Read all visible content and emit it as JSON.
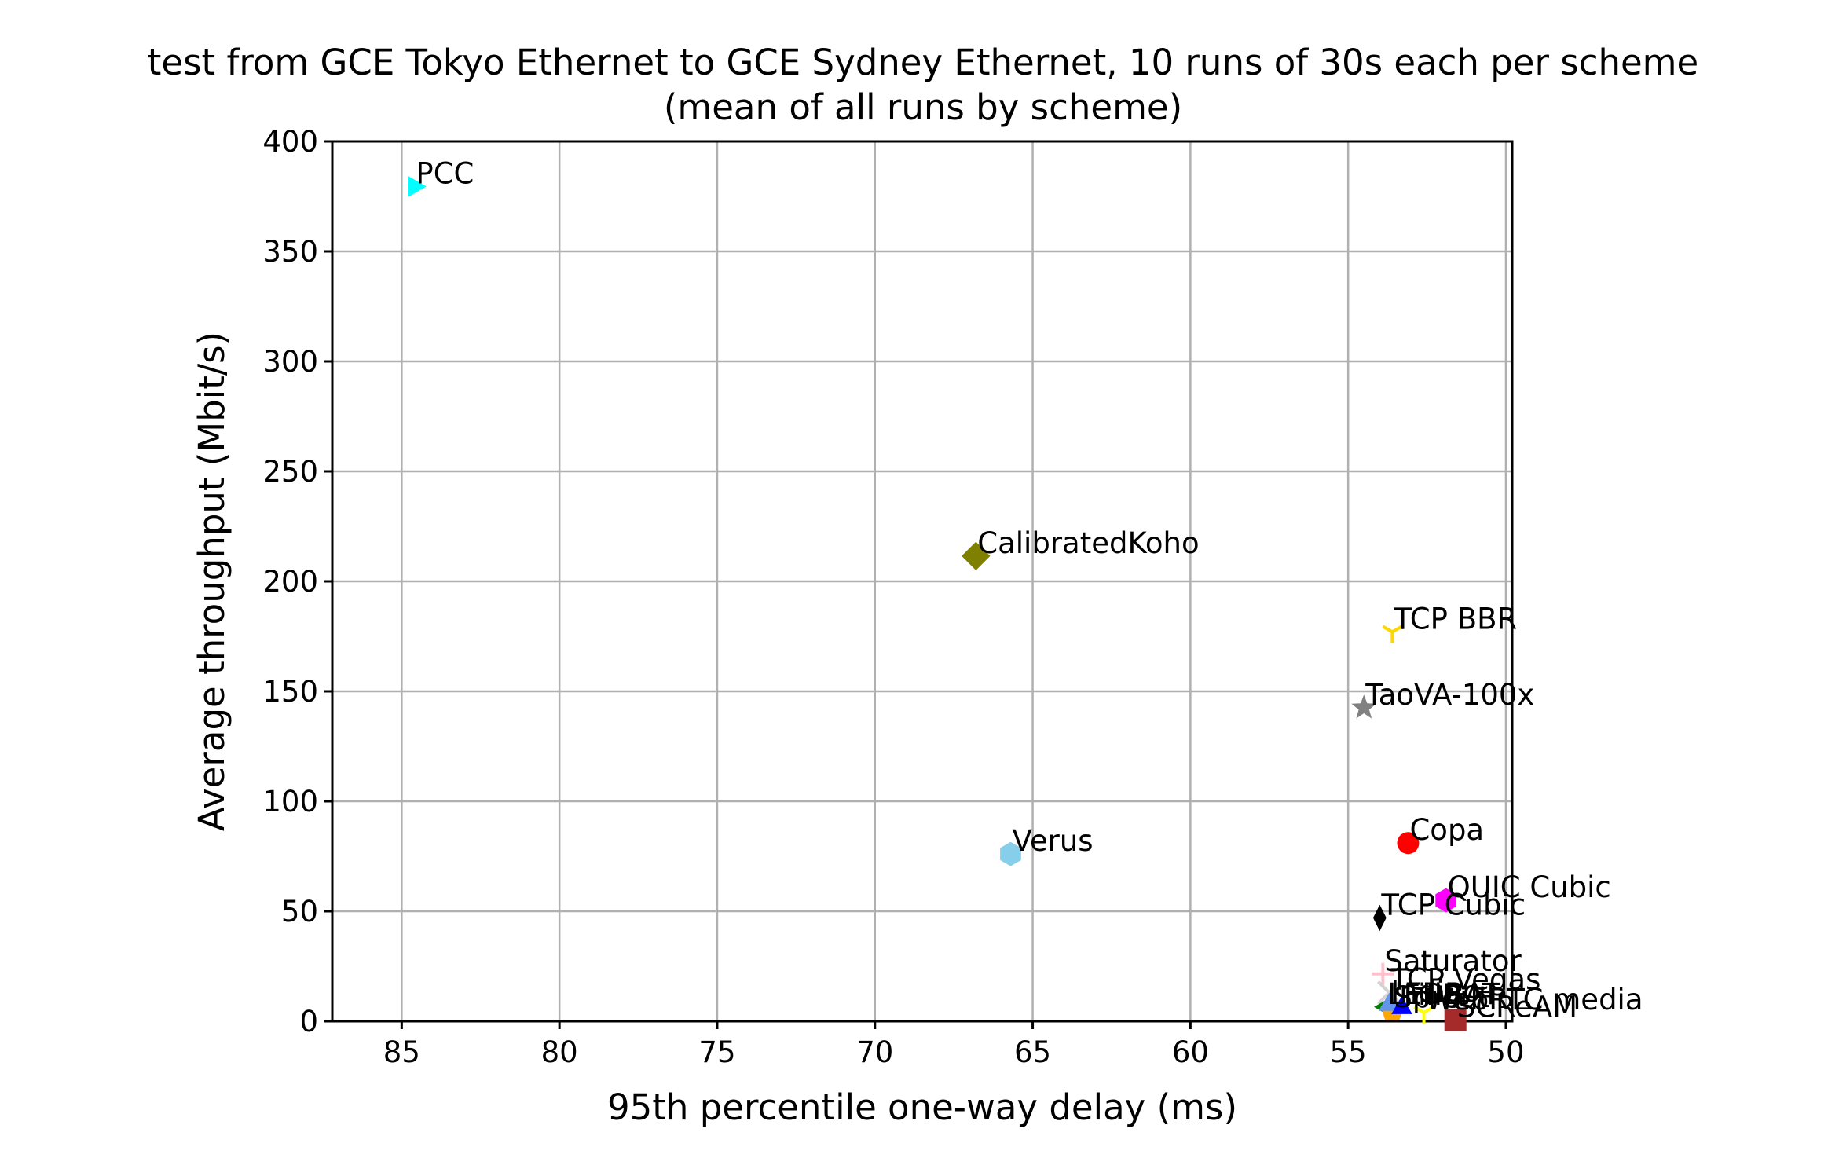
{
  "chart_data": {
    "type": "scatter",
    "title": "test from GCE Tokyo Ethernet to GCE Sydney Ethernet, 10 runs of 30s each per scheme",
    "subtitle": "(mean of all runs by scheme)",
    "xlabel": "95th percentile one-way delay (ms)",
    "ylabel": "Average throughput (Mbit/s)",
    "xlim": [
      87.2,
      49.8
    ],
    "ylim": [
      0,
      400
    ],
    "x_inverted": true,
    "grid": true,
    "x_ticks": [
      85,
      80,
      75,
      70,
      65,
      60,
      55,
      50
    ],
    "y_ticks": [
      0,
      50,
      100,
      150,
      200,
      250,
      300,
      350,
      400
    ],
    "x_tick_labels": [
      "85",
      "80",
      "75",
      "70",
      "65",
      "60",
      "55",
      "50"
    ],
    "y_tick_labels": [
      "0",
      "50",
      "100",
      "150",
      "200",
      "250",
      "300",
      "350",
      "400"
    ],
    "points": [
      {
        "label": "PCC",
        "x": 84.6,
        "y": 379.5,
        "color": "#00ffff",
        "marker": "triangle-right"
      },
      {
        "label": "CalibratedKoho",
        "x": 66.8,
        "y": 211.5,
        "color": "#808000",
        "marker": "diamond"
      },
      {
        "label": "TCP BBR",
        "x": 53.6,
        "y": 177.0,
        "color": "#ffd700",
        "marker": "tri-down"
      },
      {
        "label": "TaoVA-100x",
        "x": 54.5,
        "y": 142.5,
        "color": "#808080",
        "marker": "star"
      },
      {
        "label": "Verus",
        "x": 65.7,
        "y": 76.0,
        "color": "#87ceeb",
        "marker": "hexagon"
      },
      {
        "label": "Copa",
        "x": 53.1,
        "y": 81.0,
        "color": "#ff0000",
        "marker": "circle"
      },
      {
        "label": "QUIC Cubic",
        "x": 51.9,
        "y": 55.0,
        "color": "#ff00ff",
        "marker": "hexagon"
      },
      {
        "label": "TCP Cubic",
        "x": 54.0,
        "y": 47.0,
        "color": "#000000",
        "marker": "thin-diamond"
      },
      {
        "label": "Saturator",
        "x": 53.9,
        "y": 21.5,
        "color": "#ffc0cb",
        "marker": "plus"
      },
      {
        "label": "TCP Vegas",
        "x": 53.7,
        "y": 13.0,
        "color": "#d3d3d3",
        "marker": "x"
      },
      {
        "label": "LEDBAT",
        "x": 53.8,
        "y": 6.5,
        "color": "#008000",
        "marker": "triangle-left"
      },
      {
        "label": "Sprout",
        "x": 53.6,
        "y": 5.0,
        "color": "#ffa500",
        "marker": "pentagon"
      },
      {
        "label": "Indigo",
        "x": 53.7,
        "y": 7.5,
        "color": "#6495ed",
        "marker": "triangle-up"
      },
      {
        "label": "FillP",
        "x": 53.3,
        "y": 6.0,
        "color": "#0000ff",
        "marker": "triangle-up"
      },
      {
        "label": "WebRTC media",
        "x": 52.6,
        "y": 4.0,
        "color": "#ffff00",
        "marker": "tri-down"
      },
      {
        "label": "SCReAM",
        "x": 51.6,
        "y": 0.5,
        "color": "#a52a2a",
        "marker": "square"
      }
    ]
  }
}
